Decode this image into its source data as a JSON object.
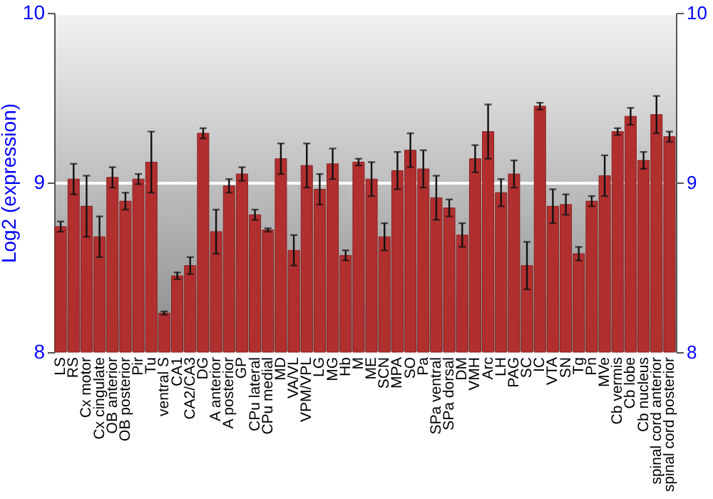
{
  "chart_data": {
    "type": "bar",
    "ylabel": "Log2 (expression)",
    "categories": [
      "LS",
      "RS",
      "Cx motor",
      "Cx cingulate",
      "OB anterior",
      "OB posterior",
      "Pir",
      "Tu",
      "ventral S",
      "CA1",
      "CA2/CA3",
      "DG",
      "A anterior",
      "A posterior",
      "GP",
      "CPu lateral",
      "CPu medial",
      "MD",
      "VA/VL",
      "VPM/VPL",
      "LG",
      "MG",
      "Hb",
      "M",
      "ME",
      "SCN",
      "MPA",
      "SO",
      "Pa",
      "SPa ventral",
      "SPa dorsal",
      "DM",
      "VMH",
      "Arc",
      "LH",
      "PAG",
      "SC",
      "IC",
      "VTA",
      "SN",
      "Tg",
      "Pn",
      "MVe",
      "Cb vermis",
      "Cb lobe",
      "Cb nucleus",
      "spinal cord anterior",
      "spinal cord posterior"
    ],
    "series": [
      {
        "color": "#b22f2f",
        "values": [
          8.74,
          9.02,
          8.86,
          8.68,
          9.03,
          8.89,
          9.02,
          9.12,
          8.23,
          8.45,
          8.51,
          9.29,
          8.71,
          8.98,
          9.05,
          8.81,
          8.72,
          9.14,
          8.6,
          9.1,
          8.96,
          9.11,
          8.57,
          9.12,
          9.02,
          8.68,
          9.07,
          9.19,
          9.08,
          8.91,
          8.85,
          8.69,
          9.14,
          9.3,
          8.94,
          9.05,
          8.51,
          9.45,
          8.86,
          8.87,
          8.58,
          8.89,
          9.04,
          9.3,
          9.39,
          9.13,
          9.4,
          9.27
        ],
        "errors": [
          0.03,
          0.09,
          0.18,
          0.12,
          0.06,
          0.05,
          0.03,
          0.18,
          0.01,
          0.02,
          0.05,
          0.03,
          0.13,
          0.04,
          0.04,
          0.03,
          0.01,
          0.09,
          0.09,
          0.13,
          0.09,
          0.09,
          0.03,
          0.02,
          0.1,
          0.08,
          0.11,
          0.1,
          0.11,
          0.13,
          0.05,
          0.07,
          0.08,
          0.16,
          0.08,
          0.08,
          0.14,
          0.02,
          0.1,
          0.06,
          0.04,
          0.03,
          0.12,
          0.02,
          0.05,
          0.05,
          0.11,
          0.03
        ]
      }
    ],
    "ylim": [
      8,
      10
    ],
    "yticks": [
      8,
      9,
      10
    ],
    "y2lim": [
      8,
      10
    ],
    "y2ticks": [
      8,
      9,
      10
    ],
    "grid": "y"
  }
}
